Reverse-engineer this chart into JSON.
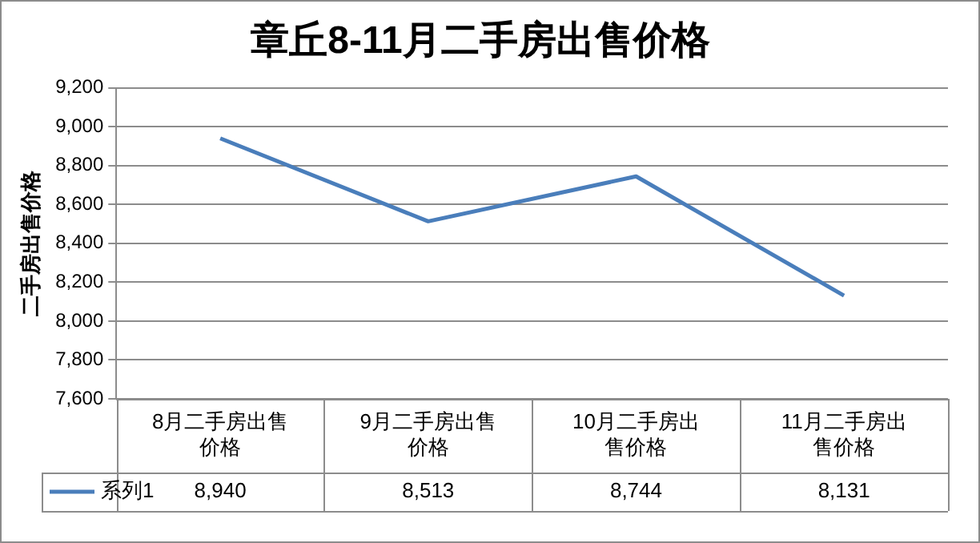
{
  "chart_data": {
    "type": "line",
    "title": "章丘8-11月二手房出售价格",
    "ylabel": "二手房出售价格",
    "categories": [
      "8月二手房出售价格",
      "9月二手房出售价格",
      "10月二手房出售价格",
      "11月二手房出售价格"
    ],
    "series": [
      {
        "name": "系列1",
        "color": "#4a7ebb",
        "values": [
          8940,
          8513,
          8744,
          8131
        ],
        "value_labels": [
          "8,940",
          "8,513",
          "8,744",
          "8,131"
        ]
      }
    ],
    "ylim": [
      7600,
      9200
    ],
    "yticks": [
      {
        "value": 7600,
        "label": "7,600"
      },
      {
        "value": 7800,
        "label": "7,800"
      },
      {
        "value": 8000,
        "label": "8,000"
      },
      {
        "value": 8200,
        "label": "8,200"
      },
      {
        "value": 8400,
        "label": "8,400"
      },
      {
        "value": 8600,
        "label": "8,600"
      },
      {
        "value": 8800,
        "label": "8,800"
      },
      {
        "value": 9000,
        "label": "9,000"
      },
      {
        "value": 9200,
        "label": "9,200"
      }
    ],
    "grid": "y",
    "legend": "bottom"
  }
}
